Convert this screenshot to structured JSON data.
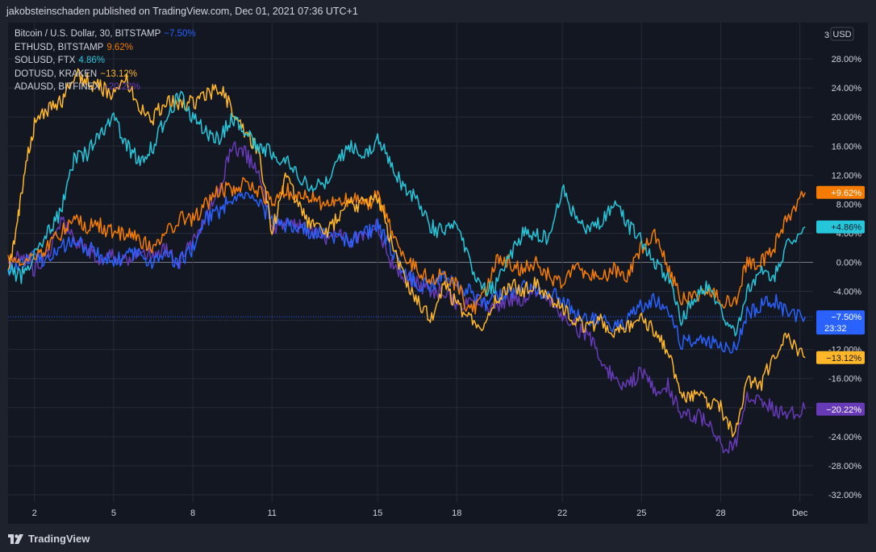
{
  "header": {
    "publisher_line": "jakobsteinschaden published on TradingView.com, Dec 01, 2021 07:36 UTC+1"
  },
  "footer": {
    "brand": "TradingView"
  },
  "price_axis": {
    "currency": "USD",
    "top_partial_label": "3"
  },
  "countdown": "23:32",
  "colors": {
    "background": "#131722",
    "grid": "#262b38",
    "zero_line": "#787b86",
    "btc": "#2962ff",
    "eth": "#f57c00",
    "sol": "#26c6da",
    "dot": "#ffb628",
    "ada": "#673ab7"
  },
  "chart_data": {
    "type": "line",
    "xlabel": "",
    "ylabel": "",
    "ylim": [
      -33,
      33
    ],
    "y_ticks": [
      28,
      24,
      20,
      16,
      12,
      8,
      4,
      0,
      -4,
      -8,
      -12,
      -16,
      -20,
      -24,
      -28,
      -32
    ],
    "y_tick_labels": [
      "28.00%",
      "24.00%",
      "20.00%",
      "16.00%",
      "12.00%",
      "8.00%",
      "4.00%",
      "0.00%",
      "-4.00%",
      "-8.00%",
      "-12.00%",
      "-16.00%",
      "-20.00%",
      "-24.00%",
      "-28.00%",
      "-32.00%"
    ],
    "x_ticks": [
      {
        "x": 1,
        "label": "2"
      },
      {
        "x": 4,
        "label": "5"
      },
      {
        "x": 7,
        "label": "8"
      },
      {
        "x": 10,
        "label": "11"
      },
      {
        "x": 14,
        "label": "15"
      },
      {
        "x": 17,
        "label": "18"
      },
      {
        "x": 21,
        "label": "22"
      },
      {
        "x": 24,
        "label": "25"
      },
      {
        "x": 27,
        "label": "28"
      },
      {
        "x": 30,
        "label": "Dec"
      }
    ],
    "xlim": [
      0,
      30.5
    ],
    "series": [
      {
        "name": "Bitcoin / U.S. Dollar, 30, BITSTAMP",
        "short": "BTC",
        "color": "#2962ff",
        "last_label": "−7.50%",
        "last_value": -7.5,
        "points": [
          [
            0,
            -1
          ],
          [
            0.5,
            0
          ],
          [
            1,
            1
          ],
          [
            1.5,
            0
          ],
          [
            2,
            2
          ],
          [
            2.5,
            3
          ],
          [
            3,
            2
          ],
          [
            3.5,
            1
          ],
          [
            4,
            0
          ],
          [
            4.5,
            1
          ],
          [
            5,
            1
          ],
          [
            5.5,
            0
          ],
          [
            6,
            1
          ],
          [
            6.5,
            0
          ],
          [
            7,
            2
          ],
          [
            7.5,
            6
          ],
          [
            8,
            7
          ],
          [
            8.5,
            9
          ],
          [
            9,
            9
          ],
          [
            9.5,
            8
          ],
          [
            10,
            6
          ],
          [
            10.5,
            5
          ],
          [
            11,
            5
          ],
          [
            11.5,
            4
          ],
          [
            12,
            4
          ],
          [
            12.5,
            3
          ],
          [
            13,
            3
          ],
          [
            13.5,
            4
          ],
          [
            14,
            5
          ],
          [
            14.5,
            2
          ],
          [
            15,
            -1
          ],
          [
            15.5,
            -3
          ],
          [
            16,
            -3
          ],
          [
            16.5,
            -2
          ],
          [
            17,
            -3
          ],
          [
            17.5,
            -4
          ],
          [
            18,
            -6
          ],
          [
            18.5,
            -5
          ],
          [
            19,
            -4
          ],
          [
            19.5,
            -3
          ],
          [
            20,
            -4
          ],
          [
            20.5,
            -4
          ],
          [
            21,
            -5
          ],
          [
            21.5,
            -7
          ],
          [
            22,
            -8
          ],
          [
            22.5,
            -8
          ],
          [
            23,
            -9
          ],
          [
            23.5,
            -8
          ],
          [
            24,
            -6
          ],
          [
            24.5,
            -5
          ],
          [
            25,
            -7
          ],
          [
            25.5,
            -11
          ],
          [
            26,
            -11
          ],
          [
            26.5,
            -11
          ],
          [
            27,
            -11
          ],
          [
            27.5,
            -12
          ],
          [
            28,
            -7
          ],
          [
            28.5,
            -6
          ],
          [
            29,
            -5
          ],
          [
            29.5,
            -7
          ],
          [
            30.2,
            -7.5
          ]
        ]
      },
      {
        "name": "ETHUSD, BITSTAMP",
        "short": "ETH",
        "color": "#f57c00",
        "last_label": "+9.62%",
        "last_value": 9.62,
        "points": [
          [
            0,
            1
          ],
          [
            0.5,
            0
          ],
          [
            1,
            1
          ],
          [
            1.5,
            2
          ],
          [
            2,
            4
          ],
          [
            2.5,
            6
          ],
          [
            3,
            5
          ],
          [
            3.5,
            5
          ],
          [
            4,
            4
          ],
          [
            4.5,
            4
          ],
          [
            5,
            3
          ],
          [
            5.5,
            2
          ],
          [
            6,
            4
          ],
          [
            6.5,
            6
          ],
          [
            7,
            6
          ],
          [
            7.5,
            8
          ],
          [
            8,
            10
          ],
          [
            8.5,
            10
          ],
          [
            9,
            11
          ],
          [
            9.5,
            10
          ],
          [
            10,
            8
          ],
          [
            10.5,
            10
          ],
          [
            11,
            9
          ],
          [
            11.5,
            9
          ],
          [
            12,
            8
          ],
          [
            12.5,
            8
          ],
          [
            13,
            9
          ],
          [
            13.5,
            8
          ],
          [
            14,
            9
          ],
          [
            14.5,
            5
          ],
          [
            15,
            1
          ],
          [
            15.5,
            -1
          ],
          [
            16,
            -2
          ],
          [
            16.5,
            -2
          ],
          [
            17,
            -3
          ],
          [
            17.5,
            -7
          ],
          [
            18,
            -5
          ],
          [
            18.5,
            0
          ],
          [
            19,
            0
          ],
          [
            19.5,
            -1
          ],
          [
            20,
            0
          ],
          [
            20.5,
            -2
          ],
          [
            21,
            -3
          ],
          [
            21.5,
            0
          ],
          [
            22,
            -2
          ],
          [
            22.5,
            -2
          ],
          [
            23,
            -1
          ],
          [
            23.5,
            -2
          ],
          [
            24,
            2
          ],
          [
            24.5,
            4
          ],
          [
            25,
            -1
          ],
          [
            25.5,
            -5
          ],
          [
            26,
            -5
          ],
          [
            26.5,
            -4
          ],
          [
            27,
            -5
          ],
          [
            27.5,
            -6
          ],
          [
            28,
            0
          ],
          [
            28.5,
            0
          ],
          [
            29,
            2
          ],
          [
            29.5,
            6
          ],
          [
            30.2,
            9.62
          ]
        ]
      },
      {
        "name": "SOLUSD, FTX",
        "short": "SOL",
        "color": "#26c6da",
        "last_label": "+4.86%",
        "last_value": 4.86,
        "points": [
          [
            0,
            -1
          ],
          [
            0.5,
            -2
          ],
          [
            1,
            1
          ],
          [
            1.5,
            4
          ],
          [
            2,
            7
          ],
          [
            2.5,
            14
          ],
          [
            3,
            15
          ],
          [
            3.5,
            18
          ],
          [
            4,
            20
          ],
          [
            4.5,
            16
          ],
          [
            5,
            14
          ],
          [
            5.5,
            16
          ],
          [
            6,
            20
          ],
          [
            6.5,
            23
          ],
          [
            7,
            20
          ],
          [
            7.5,
            18
          ],
          [
            8,
            17
          ],
          [
            8.5,
            20
          ],
          [
            9,
            18
          ],
          [
            9.5,
            16
          ],
          [
            10,
            15
          ],
          [
            10.5,
            14
          ],
          [
            11,
            12
          ],
          [
            11.5,
            10
          ],
          [
            12,
            11
          ],
          [
            12.5,
            14
          ],
          [
            13,
            16
          ],
          [
            13.5,
            15
          ],
          [
            14,
            17
          ],
          [
            14.5,
            14
          ],
          [
            15,
            10
          ],
          [
            15.5,
            9
          ],
          [
            16,
            5
          ],
          [
            16.5,
            4
          ],
          [
            17,
            6
          ],
          [
            17.5,
            0
          ],
          [
            18,
            -4
          ],
          [
            18.5,
            -3
          ],
          [
            19,
            1
          ],
          [
            19.5,
            4
          ],
          [
            20,
            4
          ],
          [
            20.5,
            3
          ],
          [
            21,
            10
          ],
          [
            21.5,
            6
          ],
          [
            22,
            4
          ],
          [
            22.5,
            6
          ],
          [
            23,
            8
          ],
          [
            23.5,
            5
          ],
          [
            24,
            3
          ],
          [
            24.5,
            0
          ],
          [
            25,
            -2
          ],
          [
            25.5,
            -8
          ],
          [
            26,
            -5
          ],
          [
            26.5,
            -3
          ],
          [
            27,
            -6
          ],
          [
            27.5,
            -10
          ],
          [
            28,
            -4
          ],
          [
            28.5,
            -1
          ],
          [
            29,
            -2
          ],
          [
            29.5,
            2
          ],
          [
            30.2,
            4.86
          ]
        ]
      },
      {
        "name": "DOTUSD, KRAKEN",
        "short": "DOT",
        "color": "#ffb628",
        "last_label": "−13.12%",
        "last_value": -13.12,
        "points": [
          [
            0,
            -1
          ],
          [
            0.3,
            4
          ],
          [
            0.6,
            12
          ],
          [
            1,
            19
          ],
          [
            1.5,
            21
          ],
          [
            2,
            22
          ],
          [
            2.5,
            26
          ],
          [
            3,
            25
          ],
          [
            3.5,
            24
          ],
          [
            4,
            23
          ],
          [
            4.5,
            25
          ],
          [
            5,
            21
          ],
          [
            5.5,
            20
          ],
          [
            6,
            22
          ],
          [
            6.5,
            22
          ],
          [
            7,
            22
          ],
          [
            7.5,
            23
          ],
          [
            8,
            24
          ],
          [
            8.5,
            21
          ],
          [
            9,
            18
          ],
          [
            9.5,
            15
          ],
          [
            10,
            4
          ],
          [
            10.5,
            12
          ],
          [
            11,
            8
          ],
          [
            11.5,
            5
          ],
          [
            12,
            4
          ],
          [
            12.5,
            6
          ],
          [
            13,
            8
          ],
          [
            13.5,
            8
          ],
          [
            14,
            9
          ],
          [
            14.5,
            3
          ],
          [
            15,
            -2
          ],
          [
            15.5,
            -5
          ],
          [
            16,
            -8
          ],
          [
            16.5,
            -3
          ],
          [
            17,
            -6
          ],
          [
            17.5,
            -8
          ],
          [
            18,
            -10
          ],
          [
            18.5,
            -5
          ],
          [
            19,
            -3
          ],
          [
            19.5,
            -4
          ],
          [
            20,
            -3
          ],
          [
            20.5,
            -5
          ],
          [
            21,
            -6
          ],
          [
            21.5,
            -8
          ],
          [
            22,
            -9
          ],
          [
            22.5,
            -8
          ],
          [
            23,
            -10
          ],
          [
            23.5,
            -9
          ],
          [
            24,
            -7
          ],
          [
            24.5,
            -10
          ],
          [
            25,
            -12
          ],
          [
            25.5,
            -19
          ],
          [
            26,
            -18
          ],
          [
            26.5,
            -19
          ],
          [
            27,
            -20
          ],
          [
            27.5,
            -24
          ],
          [
            28,
            -16
          ],
          [
            28.5,
            -17
          ],
          [
            29,
            -13
          ],
          [
            29.5,
            -10
          ],
          [
            30.2,
            -13.12
          ]
        ]
      },
      {
        "name": "ADAUSD, BITFINEX",
        "short": "ADA",
        "color": "#673ab7",
        "last_label": "−20.22%",
        "last_value": -20.22,
        "points": [
          [
            0,
            0
          ],
          [
            0.5,
            1
          ],
          [
            1,
            -1
          ],
          [
            1.5,
            1
          ],
          [
            2,
            6
          ],
          [
            2.5,
            3
          ],
          [
            3,
            2
          ],
          [
            3.5,
            0
          ],
          [
            4,
            1
          ],
          [
            4.5,
            0
          ],
          [
            5,
            1
          ],
          [
            5.5,
            1
          ],
          [
            6,
            2
          ],
          [
            6.5,
            0
          ],
          [
            7,
            3
          ],
          [
            7.5,
            6
          ],
          [
            8,
            10
          ],
          [
            8.5,
            16
          ],
          [
            9,
            15
          ],
          [
            9.5,
            12
          ],
          [
            10,
            5
          ],
          [
            10.5,
            5
          ],
          [
            11,
            5
          ],
          [
            11.5,
            4
          ],
          [
            12,
            3
          ],
          [
            12.5,
            4
          ],
          [
            13,
            3
          ],
          [
            13.5,
            4
          ],
          [
            14,
            5
          ],
          [
            14.5,
            0
          ],
          [
            15,
            -2
          ],
          [
            15.5,
            -3
          ],
          [
            16,
            -4
          ],
          [
            16.5,
            -4
          ],
          [
            17,
            -6
          ],
          [
            17.5,
            -5
          ],
          [
            18,
            -6
          ],
          [
            18.5,
            -6
          ],
          [
            19,
            -5
          ],
          [
            19.5,
            -5
          ],
          [
            20,
            -4
          ],
          [
            20.5,
            -5
          ],
          [
            21,
            -7
          ],
          [
            21.5,
            -9
          ],
          [
            22,
            -10
          ],
          [
            22.5,
            -14
          ],
          [
            23,
            -16
          ],
          [
            23.5,
            -17
          ],
          [
            24,
            -15
          ],
          [
            24.5,
            -18
          ],
          [
            25,
            -17
          ],
          [
            25.5,
            -21
          ],
          [
            26,
            -21
          ],
          [
            26.5,
            -22
          ],
          [
            27,
            -25
          ],
          [
            27.5,
            -26
          ],
          [
            28,
            -18
          ],
          [
            28.5,
            -19
          ],
          [
            29,
            -20
          ],
          [
            29.5,
            -21
          ],
          [
            30.2,
            -20.22
          ]
        ]
      }
    ]
  }
}
